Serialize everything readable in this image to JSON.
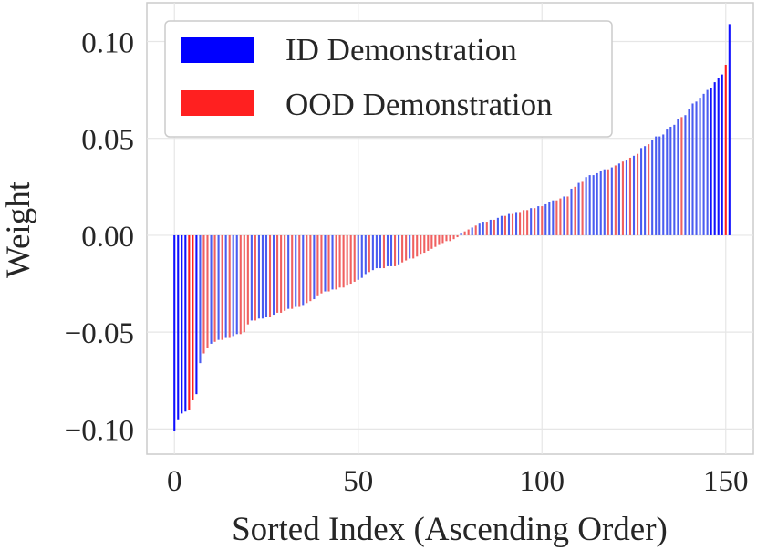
{
  "chart_data": {
    "type": "bar",
    "title": "",
    "xlabel": "Sorted Index (Ascending Order)",
    "ylabel": "Weight",
    "xlim": [
      -7.5,
      157.5
    ],
    "ylim": [
      -0.113,
      0.12
    ],
    "xticks": [
      0,
      50,
      100,
      150
    ],
    "xtick_labels": [
      "0",
      "50",
      "100",
      "150"
    ],
    "yticks": [
      -0.1,
      -0.05,
      0.0,
      0.05,
      0.1
    ],
    "ytick_labels": [
      "−0.10",
      "−0.05",
      "0.00",
      "0.05",
      "0.10"
    ],
    "grid": true,
    "legend": {
      "position": "top-left",
      "entries": [
        {
          "label": "ID Demonstration",
          "color": "#0000ff"
        },
        {
          "label": "OOD Demonstration",
          "color": "#ff2020"
        }
      ]
    },
    "colors": {
      "ID": "#4a5cf0",
      "OOD": "#f06060",
      "ID_strong": "#1010ff",
      "OOD_strong": "#ff2020"
    },
    "series": [
      {
        "name": "ID Demonstration",
        "values": [
          -0.101,
          -0.095,
          -0.092,
          -0.091,
          -0.082,
          -0.066,
          -0.056,
          -0.054,
          -0.053,
          -0.052,
          -0.051,
          -0.044,
          -0.043,
          -0.043,
          -0.042,
          -0.041,
          -0.038,
          -0.037,
          -0.036,
          -0.033,
          -0.029,
          -0.028,
          -0.023,
          -0.022,
          -0.02,
          -0.018,
          -0.017,
          -0.017,
          -0.016,
          -0.016,
          -0.015,
          -0.012,
          0.001,
          0.004,
          0.006,
          0.007,
          0.008,
          0.009,
          0.01,
          0.011,
          0.012,
          0.014,
          0.015,
          0.016,
          0.017,
          0.018,
          0.02,
          0.024,
          0.027,
          0.03,
          0.031,
          0.031,
          0.032,
          0.033,
          0.034,
          0.035,
          0.037,
          0.039,
          0.041,
          0.045,
          0.046,
          0.049,
          0.051,
          0.051,
          0.052,
          0.055,
          0.056,
          0.057,
          0.06,
          0.062,
          0.065,
          0.068,
          0.069,
          0.071,
          0.073,
          0.075,
          0.076,
          0.079,
          0.081,
          0.083,
          0.109
        ]
      },
      {
        "name": "OOD Demonstration",
        "values": [
          -0.09,
          -0.085,
          -0.061,
          -0.058,
          -0.055,
          -0.054,
          -0.053,
          -0.051,
          -0.05,
          -0.046,
          -0.044,
          -0.042,
          -0.04,
          -0.04,
          -0.039,
          -0.038,
          -0.037,
          -0.035,
          -0.034,
          -0.031,
          -0.03,
          -0.029,
          -0.028,
          -0.027,
          -0.027,
          -0.026,
          -0.025,
          -0.024,
          -0.019,
          -0.017,
          -0.016,
          -0.014,
          -0.013,
          -0.012,
          -0.011,
          -0.01,
          -0.009,
          -0.008,
          -0.007,
          -0.006,
          -0.005,
          -0.004,
          -0.003,
          -0.003,
          -0.002,
          -0.001,
          0.002,
          0.003,
          0.005,
          0.007,
          0.008,
          0.01,
          0.011,
          0.012,
          0.013,
          0.013,
          0.014,
          0.015,
          0.018,
          0.019,
          0.02,
          0.025,
          0.028,
          0.034,
          0.036,
          0.038,
          0.04,
          0.042,
          0.047,
          0.061,
          0.088
        ]
      }
    ]
  }
}
